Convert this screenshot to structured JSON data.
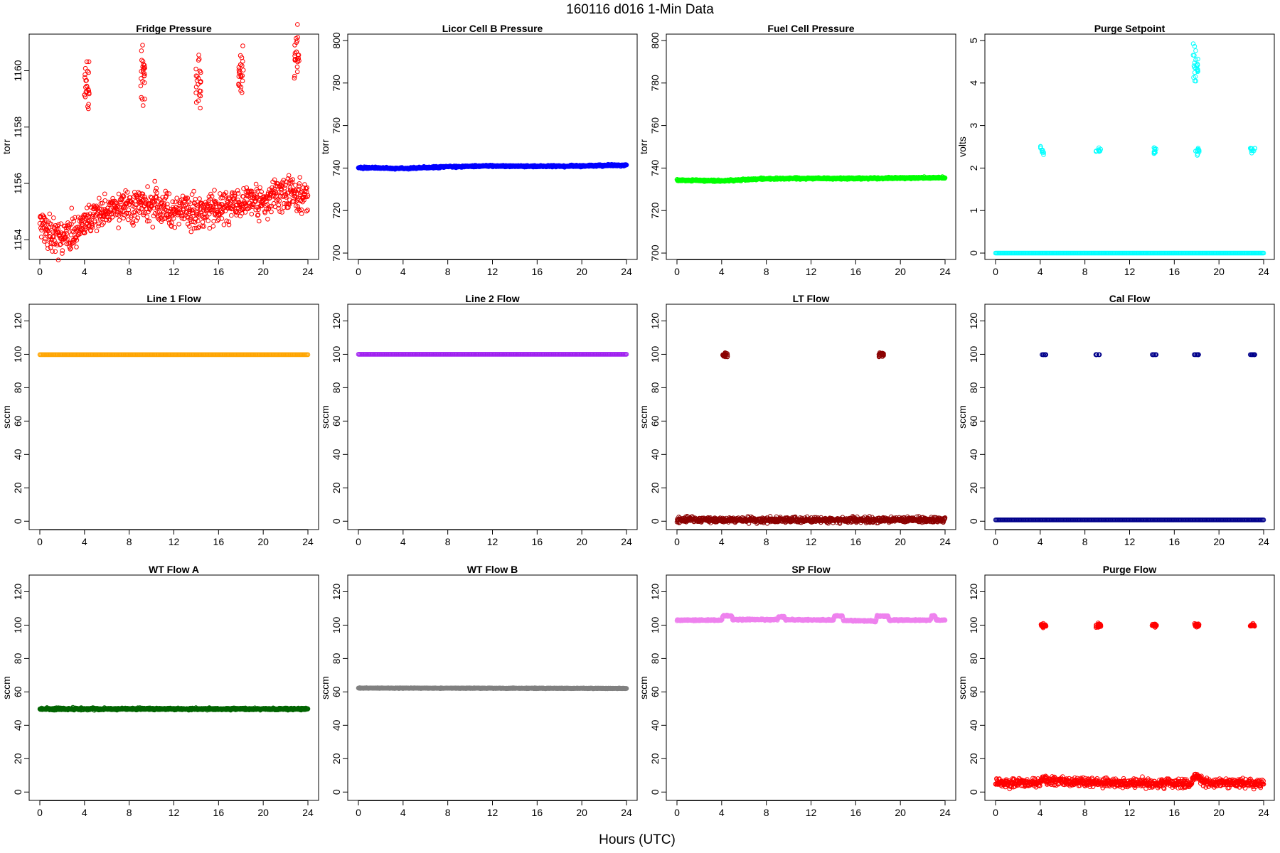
{
  "figure": {
    "title": "160116   d016   1-Min Data",
    "xlabel": "Hours (UTC)"
  },
  "chart_data": [
    {
      "type": "scatter",
      "title": "Fridge Pressure",
      "ylabel": "torr",
      "color": "#ff0000",
      "xlim": [
        0,
        24
      ],
      "ylim": [
        1153.3,
        1161.3
      ],
      "xticks": [
        0,
        4,
        8,
        12,
        16,
        20,
        24
      ],
      "yticks": [
        1154,
        1156,
        1158,
        1160
      ],
      "series": [
        {
          "baseline": [
            [
              0,
              1154.6
            ],
            [
              1,
              1154.2
            ],
            [
              2,
              1154.1
            ],
            [
              3,
              1154.2
            ],
            [
              4,
              1154.6
            ],
            [
              5,
              1154.9
            ],
            [
              6,
              1155.0
            ],
            [
              8,
              1155.2
            ],
            [
              10,
              1155.2
            ],
            [
              12,
              1155.1
            ],
            [
              14,
              1154.9
            ],
            [
              16,
              1155.1
            ],
            [
              18,
              1155.3
            ],
            [
              20,
              1155.4
            ],
            [
              22,
              1155.7
            ],
            [
              24,
              1155.5
            ]
          ],
          "spread": 0.3
        },
        {
          "clusters": [
            [
              4.2,
              1159.6
            ],
            [
              9.2,
              1159.8
            ],
            [
              14.2,
              1159.6
            ],
            [
              18.0,
              1159.9
            ],
            [
              23.0,
              1160.5
            ]
          ],
          "spread": 0.5
        }
      ]
    },
    {
      "type": "scatter",
      "title": "Licor Cell B Pressure",
      "ylabel": "torr",
      "color": "#0000ff",
      "xlim": [
        0,
        24
      ],
      "ylim": [
        697,
        803
      ],
      "xticks": [
        0,
        4,
        8,
        12,
        16,
        20,
        24
      ],
      "yticks": [
        700,
        720,
        740,
        760,
        780,
        800
      ],
      "series": [
        {
          "baseline": [
            [
              0,
              740.2
            ],
            [
              4,
              739.8
            ],
            [
              8,
              740.6
            ],
            [
              12,
              741.0
            ],
            [
              16,
              740.8
            ],
            [
              20,
              741.0
            ],
            [
              24,
              741.4
            ]
          ],
          "spread": 0.2
        }
      ]
    },
    {
      "type": "scatter",
      "title": "Fuel Cell Pressure",
      "ylabel": "torr",
      "color": "#00ff00",
      "xlim": [
        0,
        24
      ],
      "ylim": [
        697,
        803
      ],
      "xticks": [
        0,
        4,
        8,
        12,
        16,
        20,
        24
      ],
      "yticks": [
        700,
        720,
        740,
        760,
        780,
        800
      ],
      "series": [
        {
          "baseline": [
            [
              0,
              734.3
            ],
            [
              4,
              734.0
            ],
            [
              8,
              735.0
            ],
            [
              12,
              735.1
            ],
            [
              16,
              735.1
            ],
            [
              20,
              735.3
            ],
            [
              24,
              735.5
            ]
          ],
          "spread": 0.2
        }
      ]
    },
    {
      "type": "scatter",
      "title": "Purge Setpoint",
      "ylabel": "volts",
      "color": "#00ffff",
      "xlim": [
        0,
        24
      ],
      "ylim": [
        -0.15,
        5.15
      ],
      "xticks": [
        0,
        4,
        8,
        12,
        16,
        20,
        24
      ],
      "yticks": [
        0,
        1,
        2,
        3,
        4,
        5
      ],
      "series": [
        {
          "baseline": [
            [
              0,
              0.0
            ],
            [
              24,
              0.0
            ]
          ],
          "spread": 0.0
        },
        {
          "clusters": [
            [
              4.2,
              2.4
            ],
            [
              9.2,
              2.42
            ],
            [
              14.2,
              2.42
            ],
            [
              18.0,
              2.4
            ],
            [
              23.0,
              2.42
            ]
          ],
          "spread": 0.04
        },
        {
          "clusters": [
            [
              17.9,
              4.5
            ]
          ],
          "spread": 0.25
        }
      ]
    },
    {
      "type": "scatter",
      "title": "Line 1 Flow",
      "ylabel": "sccm",
      "color": "#ffa500",
      "xlim": [
        0,
        24
      ],
      "ylim": [
        -5,
        130
      ],
      "xticks": [
        0,
        4,
        8,
        12,
        16,
        20,
        24
      ],
      "yticks": [
        0,
        20,
        40,
        60,
        80,
        100,
        120
      ],
      "series": [
        {
          "baseline": [
            [
              0,
              99.8
            ],
            [
              24,
              99.8
            ]
          ],
          "spread": 0.0
        }
      ]
    },
    {
      "type": "scatter",
      "title": "Line 2 Flow",
      "ylabel": "sccm",
      "color": "#a020f0",
      "xlim": [
        0,
        24
      ],
      "ylim": [
        -5,
        130
      ],
      "xticks": [
        0,
        4,
        8,
        12,
        16,
        20,
        24
      ],
      "yticks": [
        0,
        20,
        40,
        60,
        80,
        100,
        120
      ],
      "series": [
        {
          "baseline": [
            [
              0,
              100.0
            ],
            [
              24,
              100.0
            ]
          ],
          "spread": 0.0
        }
      ]
    },
    {
      "type": "scatter",
      "title": "LT Flow",
      "ylabel": "sccm",
      "color": "#8b0000",
      "xlim": [
        0,
        24
      ],
      "ylim": [
        -5,
        130
      ],
      "xticks": [
        0,
        4,
        8,
        12,
        16,
        20,
        24
      ],
      "yticks": [
        0,
        20,
        40,
        60,
        80,
        100,
        120
      ],
      "series": [
        {
          "baseline": [
            [
              0,
              0.8
            ],
            [
              24,
              0.8
            ]
          ],
          "spread": 0.8
        },
        {
          "clusters": [
            [
              4.3,
              99.8
            ],
            [
              18.3,
              99.8
            ]
          ],
          "spread": 0.8
        }
      ]
    },
    {
      "type": "scatter",
      "title": "Cal Flow",
      "ylabel": "sccm",
      "color": "#00008b",
      "xlim": [
        0,
        24
      ],
      "ylim": [
        -5,
        130
      ],
      "xticks": [
        0,
        4,
        8,
        12,
        16,
        20,
        24
      ],
      "yticks": [
        0,
        20,
        40,
        60,
        80,
        100,
        120
      ],
      "series": [
        {
          "baseline": [
            [
              0,
              0.8
            ],
            [
              24,
              0.8
            ]
          ],
          "spread": 0.0
        },
        {
          "clusters": [
            [
              4.3,
              99.8
            ],
            [
              9.2,
              99.8
            ],
            [
              14.2,
              99.8
            ],
            [
              18.0,
              99.8
            ],
            [
              23.0,
              99.8
            ]
          ],
          "spread": 0.0
        }
      ]
    },
    {
      "type": "scatter",
      "title": "WT Flow A",
      "ylabel": "sccm",
      "color": "#006400",
      "xlim": [
        0,
        24
      ],
      "ylim": [
        -5,
        130
      ],
      "xticks": [
        0,
        4,
        8,
        12,
        16,
        20,
        24
      ],
      "yticks": [
        0,
        20,
        40,
        60,
        80,
        100,
        120
      ],
      "series": [
        {
          "baseline": [
            [
              0,
              49.8
            ],
            [
              24,
              49.8
            ]
          ],
          "spread": 0.3
        }
      ]
    },
    {
      "type": "scatter",
      "title": "WT Flow B",
      "ylabel": "sccm",
      "color": "#808080",
      "xlim": [
        0,
        24
      ],
      "ylim": [
        -5,
        130
      ],
      "xticks": [
        0,
        4,
        8,
        12,
        16,
        20,
        24
      ],
      "yticks": [
        0,
        20,
        40,
        60,
        80,
        100,
        120
      ],
      "series": [
        {
          "baseline": [
            [
              0,
              62.3
            ],
            [
              24,
              62.1
            ]
          ],
          "spread": 0.1
        }
      ]
    },
    {
      "type": "scatter",
      "title": "SP Flow",
      "ylabel": "sccm",
      "color": "#ee82ee",
      "xlim": [
        0,
        24
      ],
      "ylim": [
        -5,
        130
      ],
      "xticks": [
        0,
        4,
        8,
        12,
        16,
        20,
        24
      ],
      "yticks": [
        0,
        20,
        40,
        60,
        80,
        100,
        120
      ],
      "series": [
        {
          "baseline": [
            [
              0,
              103.0
            ],
            [
              4.0,
              103.0
            ],
            [
              4.1,
              105.5
            ],
            [
              4.9,
              105.5
            ],
            [
              5.0,
              103.3
            ],
            [
              9.0,
              103.3
            ],
            [
              9.1,
              105.0
            ],
            [
              9.6,
              105.0
            ],
            [
              9.7,
              103.3
            ],
            [
              14.0,
              103.0
            ],
            [
              14.1,
              105.5
            ],
            [
              14.8,
              105.5
            ],
            [
              14.9,
              102.8
            ],
            [
              17.3,
              102.5
            ],
            [
              17.8,
              102.0
            ],
            [
              17.9,
              105.5
            ],
            [
              18.9,
              105.5
            ],
            [
              19.0,
              103.0
            ],
            [
              22.7,
              103.0
            ],
            [
              22.8,
              105.5
            ],
            [
              23.1,
              105.5
            ],
            [
              23.2,
              103.0
            ],
            [
              24,
              103.0
            ]
          ],
          "spread": 0.2
        }
      ]
    },
    {
      "type": "scatter",
      "title": "Purge Flow",
      "ylabel": "sccm",
      "color": "#ff0000",
      "xlim": [
        0,
        24
      ],
      "ylim": [
        -5,
        130
      ],
      "xticks": [
        0,
        4,
        8,
        12,
        16,
        20,
        24
      ],
      "yticks": [
        0,
        20,
        40,
        60,
        80,
        100,
        120
      ],
      "series": [
        {
          "baseline": [
            [
              0,
              5.5
            ],
            [
              4.0,
              5.5
            ],
            [
              4.3,
              9.0
            ],
            [
              4.6,
              6.5
            ],
            [
              8,
              5.8
            ],
            [
              12,
              5.5
            ],
            [
              16,
              5.2
            ],
            [
              17.4,
              4.8
            ],
            [
              17.9,
              9.5
            ],
            [
              18.3,
              8.0
            ],
            [
              18.6,
              5.5
            ],
            [
              24,
              5.3
            ]
          ],
          "spread": 1.3
        },
        {
          "clusters": [
            [
              4.3,
              99.8
            ],
            [
              9.2,
              99.8
            ],
            [
              14.2,
              99.8
            ],
            [
              18.0,
              100.0
            ],
            [
              23.0,
              99.8
            ]
          ],
          "spread": 0.5
        }
      ]
    }
  ]
}
